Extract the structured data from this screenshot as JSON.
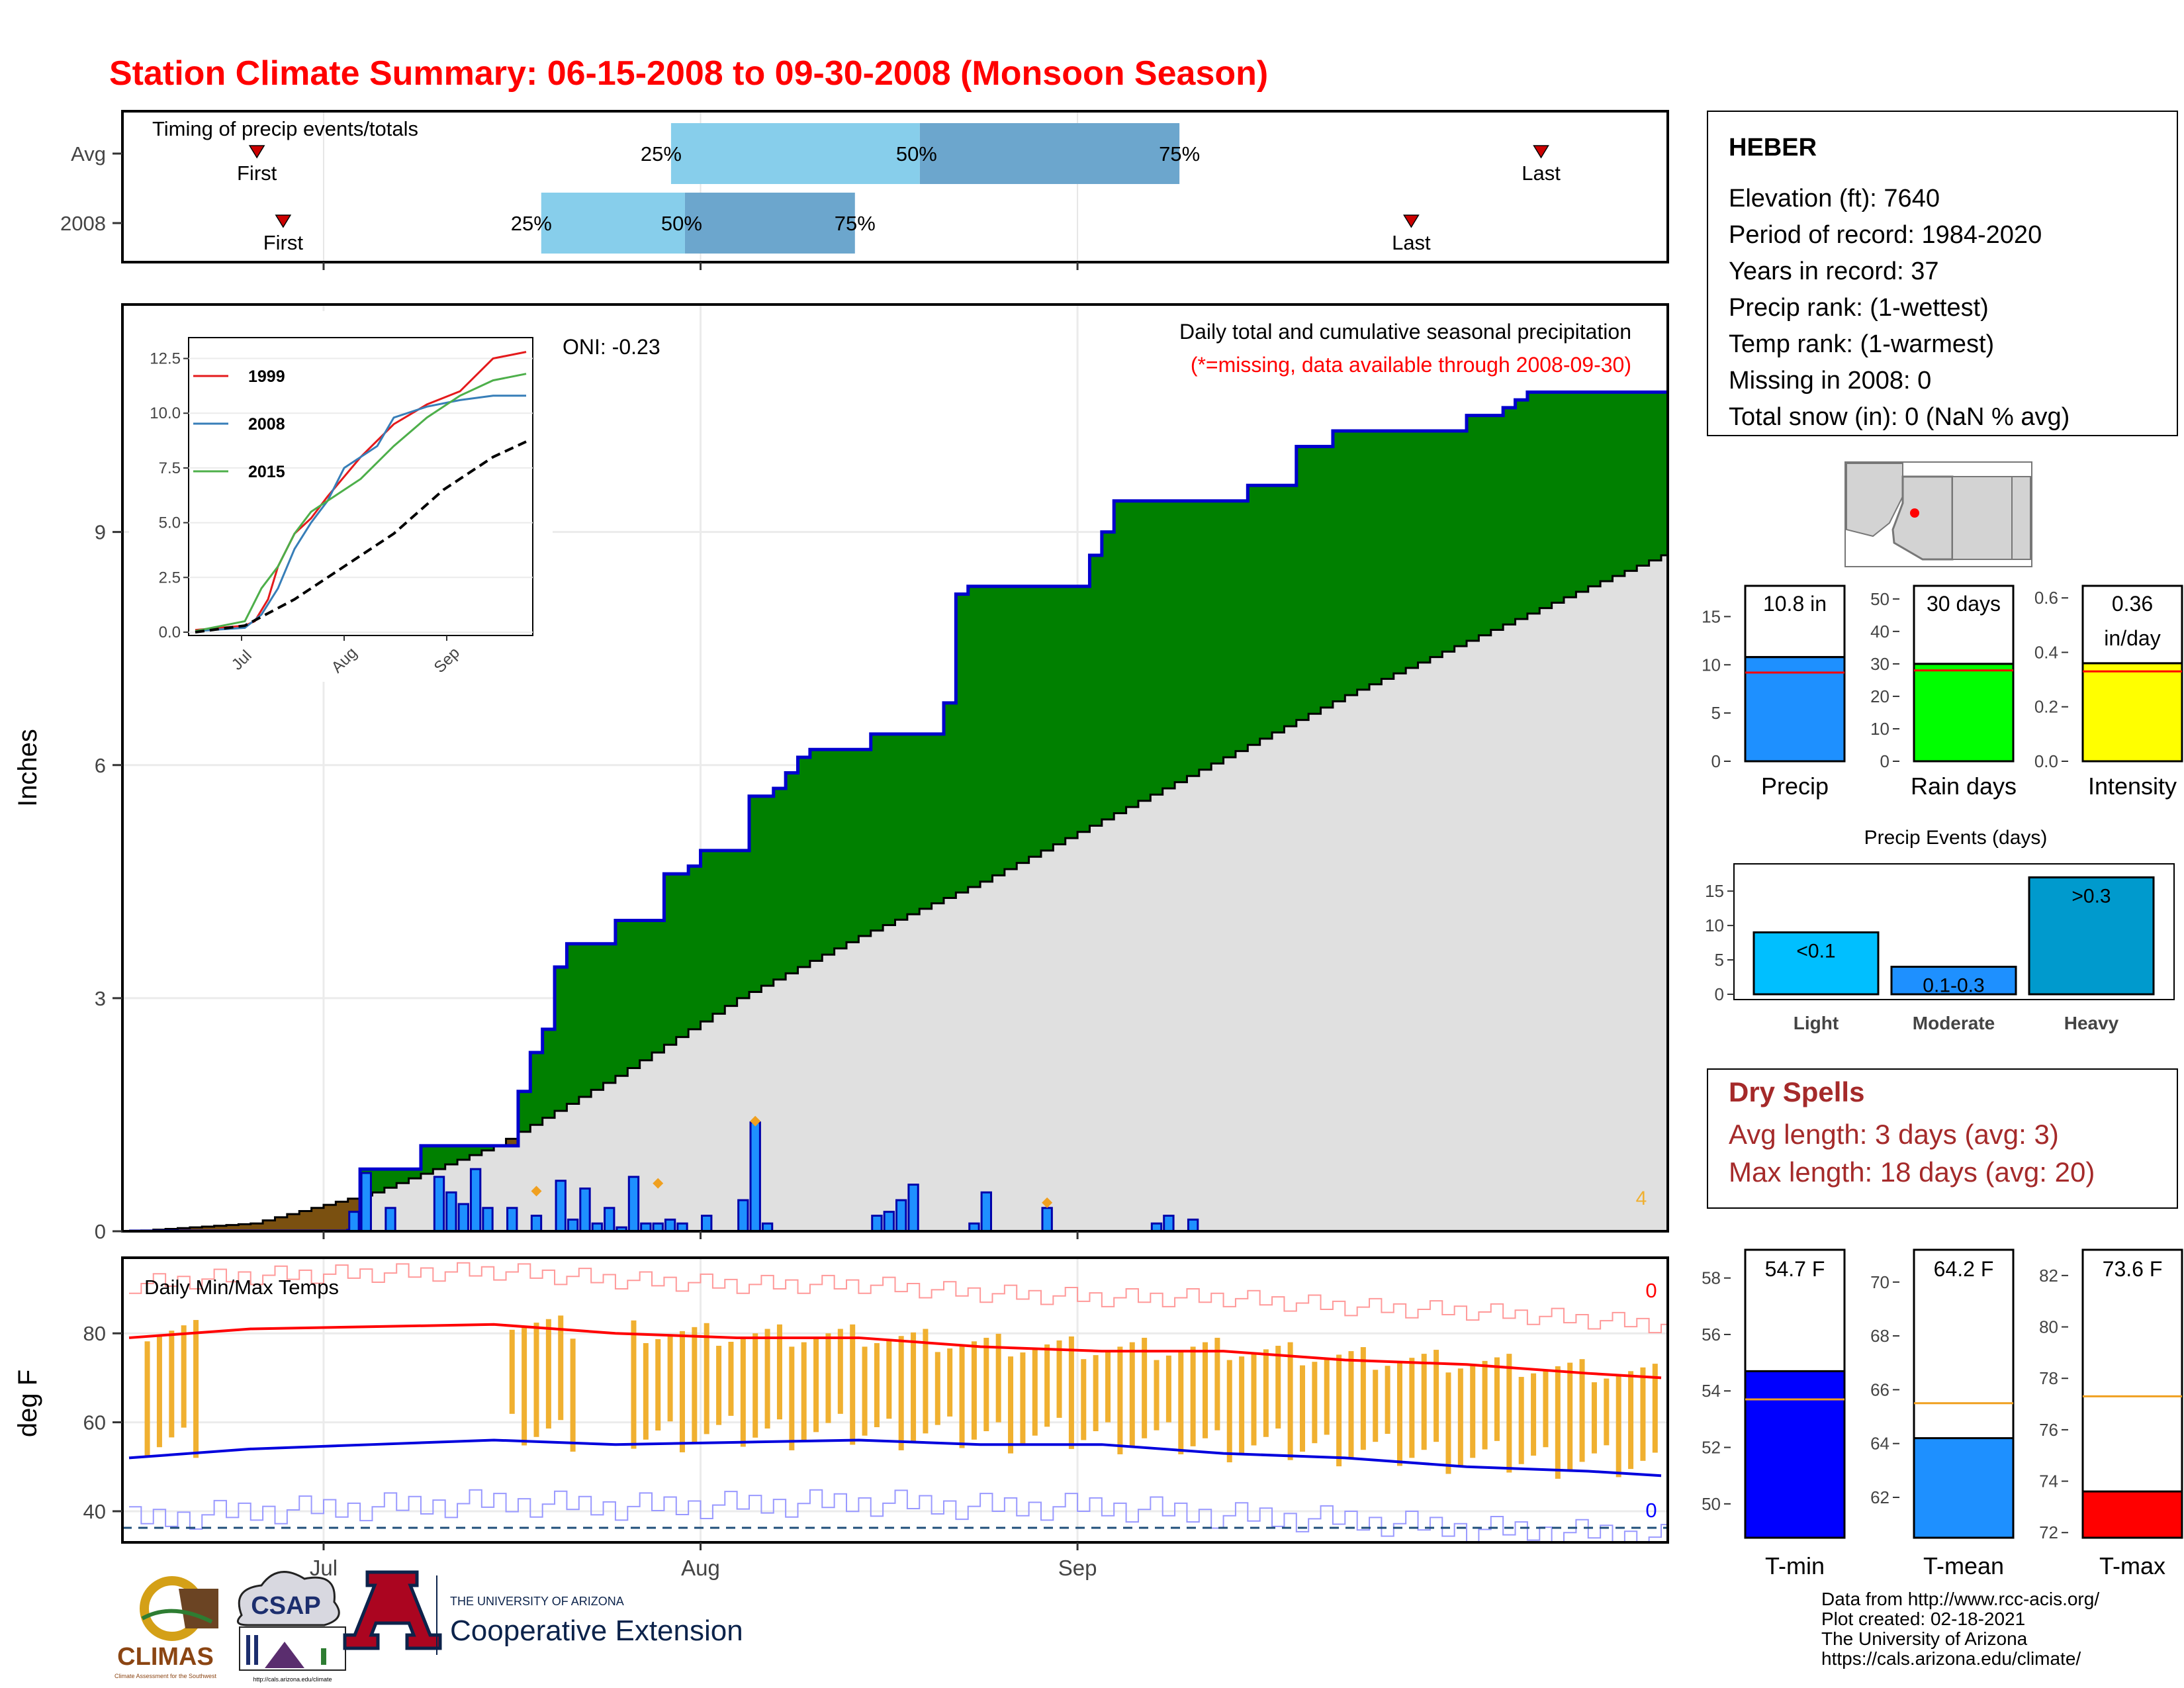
{
  "title": "Station Climate Summary: 06-15-2008 to 09-30-2008 (Monsoon Season)",
  "colors": {
    "title": "#ff0000",
    "green": "#008000",
    "blue_line": "#0000cd",
    "bar_blue": "#1e90ff",
    "light_blue": "#87ceeb",
    "mid_blue": "#6ca6cd",
    "orange": "#f0b030",
    "red": "#ff0000",
    "brown": "#7a5010",
    "gray_fill": "#e0e0e0",
    "dark_red": "#a52a2a"
  },
  "timing": {
    "title": "Timing of precip events/totals",
    "rows": [
      {
        "label": "Avg",
        "first_day": 0.087,
        "p25_day": 0.355,
        "p50_day": 0.516,
        "p75_day": 0.684,
        "last_day": 0.918,
        "first_label": "First",
        "last_label": "Last",
        "p25_label": "25%",
        "p50_label": "50%",
        "p75_label": "75%"
      },
      {
        "label": "2008",
        "first_day": 0.104,
        "p25_day": 0.271,
        "p50_day": 0.364,
        "p75_day": 0.474,
        "last_day": 0.834,
        "first_label": "First",
        "last_label": "Last",
        "p25_label": "25%",
        "p50_label": "50%",
        "p75_label": "75%"
      }
    ]
  },
  "main_panel": {
    "ylabel": "Inches",
    "yticks": [
      0,
      3,
      6,
      9
    ],
    "ylim": [
      0,
      11.8
    ],
    "oni_label": "ONI: -0.23",
    "header_label": "Daily total and cumulative seasonal precipitation",
    "missing_label": "(*=missing, data available through 2008-09-30)",
    "count_label": "4",
    "xticks": [
      "Jul",
      "Aug",
      "Sep"
    ]
  },
  "chart_data": [
    {
      "type": "line",
      "title": "Daily total and cumulative seasonal precipitation",
      "xlabel": "",
      "ylabel": "Inches",
      "x_unit": "day of season (0 = Jun 15)",
      "series": [
        {
          "name": "2008 cumulative",
          "points": [
            [
              0,
              0
            ],
            [
              18,
              0.01
            ],
            [
              19,
              0.8
            ],
            [
              24,
              1.1
            ],
            [
              31,
              1.1
            ],
            [
              32,
              1.8
            ],
            [
              33,
              2.3
            ],
            [
              34,
              2.6
            ],
            [
              35,
              3.4
            ],
            [
              36,
              3.7
            ],
            [
              39,
              3.7
            ],
            [
              40,
              4.0
            ],
            [
              43,
              4.0
            ],
            [
              44,
              4.6
            ],
            [
              46,
              4.7
            ],
            [
              47,
              4.9
            ],
            [
              50,
              4.9
            ],
            [
              51,
              5.6
            ],
            [
              53,
              5.7
            ],
            [
              54,
              5.9
            ],
            [
              55,
              6.1
            ],
            [
              56,
              6.2
            ],
            [
              60,
              6.2
            ],
            [
              61,
              6.4
            ],
            [
              66,
              6.4
            ],
            [
              67,
              6.8
            ],
            [
              68,
              8.2
            ],
            [
              69,
              8.3
            ],
            [
              78,
              8.3
            ],
            [
              79,
              8.7
            ],
            [
              80,
              9.0
            ],
            [
              81,
              9.4
            ],
            [
              91,
              9.4
            ],
            [
              92,
              9.6
            ],
            [
              95,
              9.6
            ],
            [
              96,
              10.1
            ],
            [
              98,
              10.1
            ],
            [
              99,
              10.3
            ],
            [
              109,
              10.3
            ],
            [
              110,
              10.5
            ],
            [
              112,
              10.5
            ],
            [
              113,
              10.6
            ],
            [
              114,
              10.7
            ],
            [
              115,
              10.8
            ],
            [
              125,
              10.8
            ],
            [
              126,
              10.8
            ]
          ]
        },
        {
          "name": "Avg cumulative",
          "points": [
            [
              0,
              0
            ],
            [
              10,
              0.1
            ],
            [
              20,
              0.5
            ],
            [
              30,
              1.1
            ],
            [
              40,
              2.0
            ],
            [
              50,
              3.0
            ],
            [
              60,
              3.8
            ],
            [
              70,
              4.5
            ],
            [
              80,
              5.3
            ],
            [
              90,
              6.1
            ],
            [
              100,
              6.9
            ],
            [
              110,
              7.6
            ],
            [
              120,
              8.3
            ],
            [
              126,
              8.7
            ]
          ]
        }
      ],
      "daily_bars": [
        [
          18,
          0.25
        ],
        [
          19,
          0.75
        ],
        [
          21,
          0.3
        ],
        [
          25,
          0.7
        ],
        [
          26,
          0.5
        ],
        [
          27,
          0.35
        ],
        [
          28,
          0.8
        ],
        [
          29,
          0.3
        ],
        [
          31,
          0.3
        ],
        [
          33,
          0.2
        ],
        [
          35,
          0.65
        ],
        [
          36,
          0.15
        ],
        [
          37,
          0.55
        ],
        [
          38,
          0.1
        ],
        [
          39,
          0.3
        ],
        [
          40,
          0.05
        ],
        [
          41,
          0.7
        ],
        [
          42,
          0.1
        ],
        [
          43,
          0.1
        ],
        [
          44,
          0.15
        ],
        [
          45,
          0.1
        ],
        [
          47,
          0.2
        ],
        [
          50,
          0.4
        ],
        [
          51,
          1.4
        ],
        [
          52,
          0.1
        ],
        [
          61,
          0.2
        ],
        [
          62,
          0.25
        ],
        [
          63,
          0.4
        ],
        [
          64,
          0.6
        ],
        [
          69,
          0.1
        ],
        [
          70,
          0.5
        ],
        [
          75,
          0.3
        ],
        [
          84,
          0.1
        ],
        [
          85,
          0.2
        ],
        [
          87,
          0.15
        ]
      ],
      "ylim": [
        0,
        11.8
      ]
    },
    {
      "type": "line",
      "title": "",
      "xticks": [
        "Jul",
        "Aug",
        "Sep"
      ],
      "yticks": [
        0.0,
        2.5,
        5.0,
        7.5,
        10.0,
        12.5
      ],
      "ylim": [
        0,
        13
      ],
      "legend": [
        "1999",
        "2008",
        "2015"
      ],
      "series": [
        {
          "name": "1999",
          "color": "#e41a1c",
          "points": [
            [
              0,
              0.1
            ],
            [
              15,
              0.3
            ],
            [
              18,
              0.5
            ],
            [
              22,
              1.5
            ],
            [
              25,
              3
            ],
            [
              30,
              4.5
            ],
            [
              35,
              5.2
            ],
            [
              40,
              6.2
            ],
            [
              50,
              8
            ],
            [
              60,
              9.5
            ],
            [
              70,
              10.4
            ],
            [
              80,
              11
            ],
            [
              90,
              12.5
            ],
            [
              100,
              12.8
            ]
          ]
        },
        {
          "name": "2008",
          "color": "#377eb8",
          "points": [
            [
              0,
              0.05
            ],
            [
              15,
              0.2
            ],
            [
              20,
              0.8
            ],
            [
              25,
              2
            ],
            [
              30,
              3.8
            ],
            [
              35,
              5
            ],
            [
              40,
              6
            ],
            [
              45,
              7.5
            ],
            [
              50,
              8
            ],
            [
              55,
              8.5
            ],
            [
              60,
              9.8
            ],
            [
              70,
              10.3
            ],
            [
              80,
              10.6
            ],
            [
              90,
              10.8
            ],
            [
              100,
              10.8
            ]
          ]
        },
        {
          "name": "2015",
          "color": "#4daf4a",
          "points": [
            [
              0,
              0.05
            ],
            [
              15,
              0.5
            ],
            [
              20,
              2
            ],
            [
              25,
              3
            ],
            [
              30,
              4.5
            ],
            [
              35,
              5.5
            ],
            [
              40,
              6
            ],
            [
              50,
              7
            ],
            [
              60,
              8.5
            ],
            [
              70,
              9.8
            ],
            [
              80,
              10.8
            ],
            [
              90,
              11.5
            ],
            [
              100,
              11.8
            ]
          ]
        },
        {
          "name": "Avg",
          "color": "#000000",
          "points": [
            [
              0,
              0
            ],
            [
              15,
              0.3
            ],
            [
              30,
              1.5
            ],
            [
              45,
              3
            ],
            [
              60,
              4.5
            ],
            [
              75,
              6.5
            ],
            [
              90,
              8
            ],
            [
              100,
              8.7
            ]
          ]
        }
      ]
    },
    {
      "type": "line",
      "title": "Daily Min/Max Temps",
      "ylabel": "deg F",
      "yticks": [
        40,
        60,
        80
      ],
      "ylim": [
        33,
        97
      ],
      "series": [
        {
          "name": "Avg Tmax",
          "color": "#ff0000",
          "points": [
            [
              0,
              79
            ],
            [
              10,
              81
            ],
            [
              20,
              81.5
            ],
            [
              30,
              82
            ],
            [
              40,
              80
            ],
            [
              50,
              79
            ],
            [
              60,
              79
            ],
            [
              70,
              77
            ],
            [
              80,
              76
            ],
            [
              90,
              76
            ],
            [
              100,
              74
            ],
            [
              110,
              73
            ],
            [
              120,
              71
            ],
            [
              126,
              70
            ]
          ]
        },
        {
          "name": "Avg Tmin",
          "color": "#0000ff",
          "points": [
            [
              0,
              52
            ],
            [
              10,
              54
            ],
            [
              20,
              55
            ],
            [
              30,
              56
            ],
            [
              40,
              55
            ],
            [
              50,
              55.5
            ],
            [
              60,
              56
            ],
            [
              70,
              55
            ],
            [
              80,
              55
            ],
            [
              90,
              53
            ],
            [
              100,
              52
            ],
            [
              110,
              50
            ],
            [
              120,
              49
            ],
            [
              126,
              48
            ]
          ]
        }
      ]
    },
    {
      "type": "bar",
      "title": "",
      "categories": [
        "Precip",
        "Rain days",
        "Intensity"
      ],
      "values": [
        10.8,
        30,
        0.36
      ],
      "labels": [
        "10.8 in",
        "30 days",
        "0.36 in/day"
      ],
      "averages": [
        9.2,
        28,
        0.33
      ],
      "yticks": [
        [
          0,
          5,
          10,
          15
        ],
        [
          0,
          10,
          20,
          30,
          40,
          50
        ],
        [
          0.0,
          0.2,
          0.4,
          0.6
        ]
      ]
    },
    {
      "type": "bar",
      "title": "Precip Events (days)",
      "categories": [
        "Light",
        "Moderate",
        "Heavy"
      ],
      "values": [
        9,
        4,
        17
      ],
      "labels": [
        "<0.1",
        "0.1-0.3",
        ">0.3"
      ],
      "yticks": [
        0,
        5,
        10,
        15
      ]
    },
    {
      "type": "bar",
      "title": "",
      "categories": [
        "T-min",
        "T-mean",
        "T-max"
      ],
      "values": [
        54.7,
        64.2,
        73.6
      ],
      "labels": [
        "54.7 F",
        "64.2 F",
        "73.6 F"
      ],
      "averages": [
        53.7,
        65.5,
        77.3
      ],
      "yticks": [
        [
          50,
          52,
          54,
          56,
          58
        ],
        [
          62,
          64,
          66,
          68,
          70
        ],
        [
          72,
          74,
          76,
          78,
          80,
          82
        ]
      ]
    }
  ],
  "temp_panel": {
    "title": "Daily Min/Max Temps",
    "ylabel": "deg F",
    "count_top": "0",
    "count_bottom": "0"
  },
  "station": {
    "name": "HEBER",
    "lines": [
      "Elevation (ft): 7640",
      "Period of record: 1984-2020",
      "Years in record: 37",
      "Precip rank:  (1-wettest)",
      "Temp rank:  (1-warmest)",
      "Missing in 2008: 0",
      "Total snow (in): 0 (NaN % avg)"
    ]
  },
  "dry_spells": {
    "title": "Dry Spells",
    "avg_line": "Avg length: 3 days (avg: 3)",
    "max_line": "Max length: 18 days (avg: 20)"
  },
  "footer": {
    "lines": [
      "Data from http://www.rcc-acis.org/",
      "Plot created: 02-18-2021",
      "The University of Arizona",
      "https://cals.arizona.edu/climate/"
    ],
    "logo_climas": "CLIMAS",
    "logo_climas_sub": "Climate Assessment for the Southwest",
    "logo_csap": "CSAP",
    "logo_csap_sub": "http://cals.arizona.edu/climate",
    "ua_small": "THE UNIVERSITY OF ARIZONA",
    "ua_big": "Cooperative Extension"
  }
}
